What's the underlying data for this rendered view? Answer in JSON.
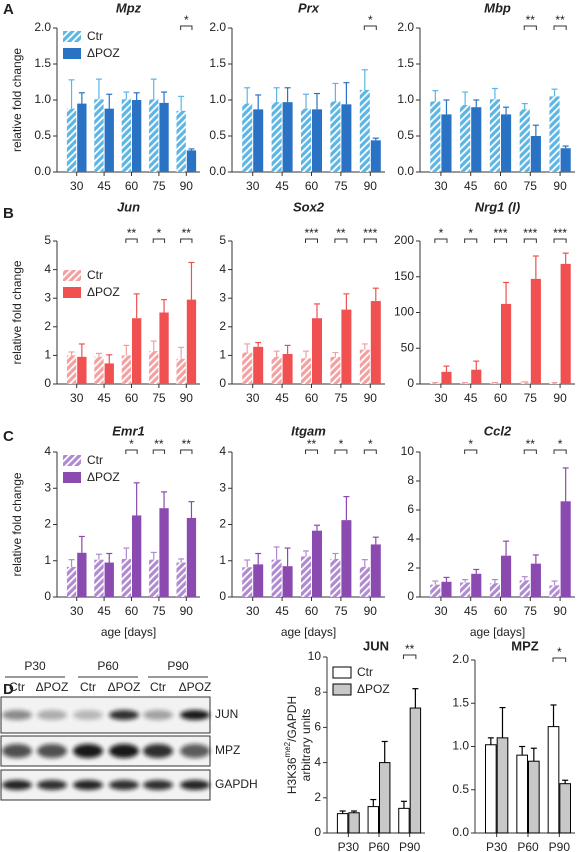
{
  "panels": [
    "A",
    "B",
    "C",
    "D"
  ],
  "chart_data": [
    {
      "type": "bar",
      "title": "Mpz",
      "title_italic": true,
      "ylabel": "relative fold change",
      "legend": "upper left",
      "categories": [
        "30",
        "45",
        "60",
        "75",
        "90"
      ],
      "series": [
        {
          "name": "Ctr",
          "color": "#5bb5e5",
          "hatch": true,
          "values": [
            0.88,
            1.01,
            1.01,
            1.01,
            0.85
          ],
          "errors": [
            0.4,
            0.28,
            0.1,
            0.28,
            0.2
          ]
        },
        {
          "name": "ΔPOZ",
          "color": "#2a72c4",
          "values": [
            0.95,
            0.88,
            1.0,
            0.96,
            0.3
          ],
          "errors": [
            0.15,
            0.2,
            0.1,
            0.15,
            0.02
          ]
        }
      ],
      "significance": [
        null,
        null,
        null,
        null,
        "*"
      ],
      "ylim": [
        0,
        2
      ],
      "yticks": [
        {
          "value": 0,
          "label": "0.0"
        },
        {
          "value": 0.5,
          "label": "0.5"
        },
        {
          "value": 1,
          "label": "1.0"
        },
        {
          "value": 1.5,
          "label": "1.5"
        },
        {
          "value": 2,
          "label": "2.0"
        }
      ]
    },
    {
      "type": "bar",
      "title": "Prx",
      "title_italic": true,
      "categories": [
        "30",
        "45",
        "60",
        "75",
        "90"
      ],
      "series": [
        {
          "name": "Ctr",
          "color": "#5bb5e5",
          "hatch": true,
          "values": [
            0.95,
            0.97,
            0.88,
            0.98,
            1.14
          ],
          "errors": [
            0.22,
            0.2,
            0.2,
            0.25,
            0.28
          ]
        },
        {
          "name": "ΔPOZ",
          "color": "#2a72c4",
          "values": [
            0.87,
            0.97,
            0.87,
            0.94,
            0.44
          ],
          "errors": [
            0.2,
            0.2,
            0.22,
            0.3,
            0.03
          ]
        }
      ],
      "significance": [
        null,
        null,
        null,
        null,
        "*"
      ],
      "ylim": [
        0,
        2
      ],
      "yticks": [
        {
          "value": 0,
          "label": "0.0"
        },
        {
          "value": 0.5,
          "label": "0.5"
        },
        {
          "value": 1,
          "label": "1.0"
        },
        {
          "value": 1.5,
          "label": "1.5"
        },
        {
          "value": 2,
          "label": "2.0"
        }
      ]
    },
    {
      "type": "bar",
      "title": "Mbp",
      "title_italic": true,
      "categories": [
        "30",
        "45",
        "60",
        "75",
        "90"
      ],
      "series": [
        {
          "name": "Ctr",
          "color": "#5bb5e5",
          "hatch": true,
          "values": [
            0.98,
            0.93,
            1.01,
            0.87,
            1.05
          ],
          "errors": [
            0.15,
            0.18,
            0.15,
            0.08,
            0.1
          ]
        },
        {
          "name": "ΔPOZ",
          "color": "#2a72c4",
          "values": [
            0.8,
            0.9,
            0.8,
            0.5,
            0.33
          ],
          "errors": [
            0.2,
            0.1,
            0.1,
            0.15,
            0.03
          ]
        }
      ],
      "significance": [
        null,
        null,
        null,
        "**",
        "**"
      ],
      "ylim": [
        0,
        2
      ],
      "yticks": [
        {
          "value": 0,
          "label": "0.0"
        },
        {
          "value": 0.5,
          "label": "0.5"
        },
        {
          "value": 1,
          "label": "1.0"
        },
        {
          "value": 1.5,
          "label": "1.5"
        },
        {
          "value": 2,
          "label": "2.0"
        }
      ]
    },
    {
      "type": "bar",
      "title": "Jun",
      "title_italic": true,
      "ylabel": "relative fold change",
      "legend": "upper left",
      "categories": [
        "30",
        "45",
        "60",
        "75",
        "90"
      ],
      "series": [
        {
          "name": "Ctr",
          "color": "#f4a0a0",
          "hatch": true,
          "values": [
            1.0,
            0.95,
            1.0,
            1.15,
            0.88
          ],
          "errors": [
            0.12,
            0.12,
            0.35,
            0.35,
            0.4
          ]
        },
        {
          "name": "ΔPOZ",
          "color": "#f05050",
          "values": [
            0.95,
            0.72,
            2.3,
            2.5,
            2.95
          ],
          "errors": [
            0.45,
            0.3,
            0.85,
            0.45,
            1.3
          ]
        }
      ],
      "significance": [
        null,
        null,
        "**",
        "*",
        "**"
      ],
      "ylim": [
        0,
        5
      ],
      "yticks": [
        0,
        1,
        2,
        3,
        4,
        5
      ]
    },
    {
      "type": "bar",
      "title": "Sox2",
      "title_italic": true,
      "categories": [
        "30",
        "45",
        "60",
        "75",
        "90"
      ],
      "series": [
        {
          "name": "Ctr",
          "color": "#f4a0a0",
          "hatch": true,
          "values": [
            1.1,
            0.95,
            0.9,
            0.95,
            1.2
          ],
          "errors": [
            0.3,
            0.2,
            0.25,
            0.15,
            0.2
          ]
        },
        {
          "name": "ΔPOZ",
          "color": "#f05050",
          "values": [
            1.3,
            1.05,
            2.3,
            2.6,
            2.9
          ],
          "errors": [
            0.15,
            0.3,
            0.5,
            0.55,
            0.45
          ]
        }
      ],
      "significance": [
        null,
        null,
        "***",
        "**",
        "***"
      ],
      "ylim": [
        0,
        5
      ],
      "yticks": [
        0,
        1,
        2,
        3,
        4,
        5
      ]
    },
    {
      "type": "bar",
      "title": "Nrg1 (I)",
      "title_italic": true,
      "categories": [
        "30",
        "45",
        "60",
        "75",
        "90"
      ],
      "series": [
        {
          "name": "Ctr",
          "color": "#f4a0a0",
          "hatch": true,
          "values": [
            1,
            1,
            1,
            2,
            1
          ],
          "errors": [
            1,
            1,
            1,
            1,
            1
          ]
        },
        {
          "name": "ΔPOZ",
          "color": "#f05050",
          "values": [
            17,
            20,
            112,
            147,
            168
          ],
          "errors": [
            8,
            12,
            30,
            32,
            15
          ]
        }
      ],
      "significance": [
        "*",
        "*",
        "***",
        "***",
        "***"
      ],
      "ylim": [
        0,
        200
      ],
      "yticks": [
        0,
        50,
        100,
        150,
        200
      ]
    },
    {
      "type": "bar",
      "title": "Emr1",
      "title_italic": true,
      "ylabel": "relative fold change",
      "xlabel": "age [days]",
      "legend": "upper left",
      "categories": [
        "30",
        "45",
        "60",
        "75",
        "90"
      ],
      "series": [
        {
          "name": "Ctr",
          "color": "#b08ad0",
          "hatch": true,
          "values": [
            0.83,
            1.03,
            1.05,
            1.03,
            0.95
          ],
          "errors": [
            0.2,
            0.15,
            0.3,
            0.2,
            0.1
          ]
        },
        {
          "name": "ΔPOZ",
          "color": "#8a4ab0",
          "values": [
            1.22,
            0.95,
            2.25,
            2.45,
            2.18
          ],
          "errors": [
            0.45,
            0.25,
            0.9,
            0.45,
            0.45
          ]
        }
      ],
      "significance": [
        null,
        null,
        "*",
        "**",
        "**"
      ],
      "ylim": [
        0,
        4
      ],
      "yticks": [
        0,
        1,
        2,
        3,
        4
      ]
    },
    {
      "type": "bar",
      "title": "Itgam",
      "title_italic": true,
      "xlabel": "age [days]",
      "categories": [
        "30",
        "45",
        "60",
        "75",
        "90"
      ],
      "series": [
        {
          "name": "Ctr",
          "color": "#b08ad0",
          "hatch": true,
          "values": [
            0.82,
            1.03,
            1.12,
            1.05,
            0.83
          ],
          "errors": [
            0.2,
            0.35,
            0.15,
            0.15,
            0.2
          ]
        },
        {
          "name": "ΔPOZ",
          "color": "#8a4ab0",
          "values": [
            0.9,
            0.85,
            1.83,
            2.12,
            1.45
          ],
          "errors": [
            0.3,
            0.5,
            0.15,
            0.65,
            0.2
          ]
        }
      ],
      "significance": [
        null,
        null,
        "**",
        "*",
        "*"
      ],
      "ylim": [
        0,
        4
      ],
      "yticks": [
        0,
        1,
        2,
        3,
        4
      ]
    },
    {
      "type": "bar",
      "title": "Ccl2",
      "title_italic": true,
      "xlabel": "age [days]",
      "categories": [
        "30",
        "45",
        "60",
        "75",
        "90"
      ],
      "series": [
        {
          "name": "Ctr",
          "color": "#b08ad0",
          "hatch": true,
          "values": [
            0.85,
            1.0,
            0.95,
            1.15,
            0.8
          ],
          "errors": [
            0.25,
            0.2,
            0.25,
            0.25,
            0.3
          ]
        },
        {
          "name": "ΔPOZ",
          "color": "#8a4ab0",
          "values": [
            1.05,
            1.6,
            2.85,
            2.3,
            6.6
          ],
          "errors": [
            0.3,
            0.3,
            1.0,
            0.6,
            2.3
          ]
        }
      ],
      "significance": [
        null,
        "*",
        null,
        "**",
        "*"
      ],
      "ylim": [
        0,
        10
      ],
      "yticks": [
        0,
        2,
        4,
        6,
        8,
        10
      ]
    },
    {
      "type": "bar",
      "title": "JUN",
      "ylabel": {
        "main": "H3K36",
        "sup": "me2",
        "rest": "/GAPDH",
        "line2": "arbitrary units"
      },
      "legend": "upper left",
      "edgecolor": "#000000",
      "categories": [
        "P30",
        "P60",
        "P90"
      ],
      "series": [
        {
          "name": "Ctr",
          "color": "#ffffff",
          "values": [
            1.1,
            1.5,
            1.4
          ],
          "errors": [
            0.15,
            0.4,
            0.4
          ]
        },
        {
          "name": "ΔPOZ",
          "color": "#c8c8c8",
          "values": [
            1.15,
            4.0,
            7.1
          ],
          "errors": [
            0.1,
            1.2,
            1.1
          ]
        }
      ],
      "significance": [
        null,
        null,
        "**"
      ],
      "ylim": [
        0,
        10
      ],
      "yticks": [
        0,
        2,
        4,
        6,
        8,
        10
      ]
    },
    {
      "type": "bar",
      "title": "MPZ",
      "edgecolor": "#000000",
      "categories": [
        "P30",
        "P60",
        "P90"
      ],
      "series": [
        {
          "name": "Ctr",
          "color": "#ffffff",
          "values": [
            1.02,
            0.9,
            1.23
          ],
          "errors": [
            0.08,
            0.1,
            0.25
          ]
        },
        {
          "name": "ΔPOZ",
          "color": "#c8c8c8",
          "values": [
            1.1,
            0.83,
            0.57
          ],
          "errors": [
            0.35,
            0.15,
            0.04
          ]
        }
      ],
      "significance": [
        null,
        null,
        "*"
      ],
      "ylim": [
        0,
        2
      ],
      "yticks": [
        {
          "value": 0,
          "label": "0.0"
        },
        {
          "value": 0.5,
          "label": "0.5"
        },
        {
          "value": 1,
          "label": "1.0"
        },
        {
          "value": 1.5,
          "label": "1.5"
        },
        {
          "value": 2,
          "label": "2.0"
        }
      ]
    }
  ],
  "blot": {
    "timepoints": [
      "P30",
      "P60",
      "P90"
    ],
    "lanes": [
      "Ctr",
      "ΔPOZ",
      "Ctr",
      "ΔPOZ",
      "Ctr",
      "ΔPOZ"
    ],
    "bands": [
      "JUN",
      "MPZ",
      "GAPDH"
    ]
  }
}
